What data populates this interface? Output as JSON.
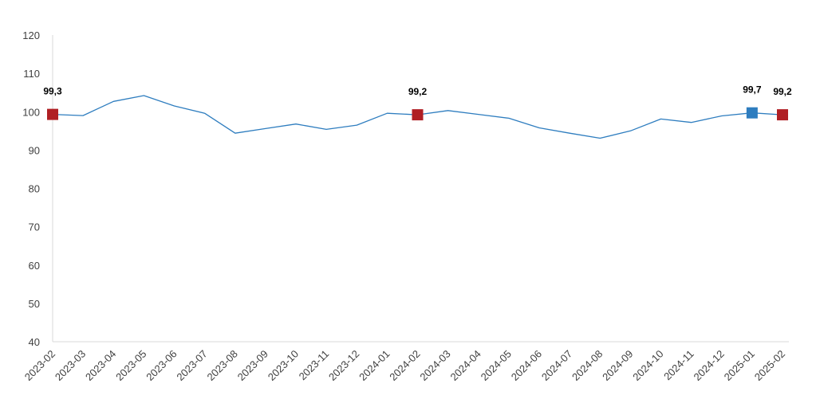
{
  "chart_data": {
    "type": "line",
    "title": "",
    "xlabel": "",
    "ylabel": "",
    "ylim": [
      40,
      120
    ],
    "yticks": [
      40,
      50,
      60,
      70,
      80,
      90,
      100,
      110,
      120
    ],
    "yticks_labels": [
      "40",
      "50",
      "60",
      "70",
      "80",
      "90",
      "100",
      "110",
      "120"
    ],
    "grid": false,
    "legend": "none",
    "categories": [
      "2023-02",
      "2023-03",
      "2023-04",
      "2023-05",
      "2023-06",
      "2023-07",
      "2023-08",
      "2023-09",
      "2023-10",
      "2023-11",
      "2023-12",
      "2024-01",
      "2024-02",
      "2024-03",
      "2024-04",
      "2024-05",
      "2024-06",
      "2024-07",
      "2024-08",
      "2024-09",
      "2024-10",
      "2024-11",
      "2024-12",
      "2025-01",
      "2025-02"
    ],
    "series": [
      {
        "values": [
          99.3,
          99.0,
          102.7,
          104.2,
          101.5,
          99.6,
          94.4,
          95.6,
          96.8,
          95.4,
          96.5,
          99.6,
          99.2,
          100.3,
          99.3,
          98.3,
          95.8,
          94.4,
          93.1,
          95.0,
          98.1,
          97.2,
          98.9,
          99.7,
          99.2
        ],
        "color": "#2e7dbf"
      }
    ],
    "highlights": [
      {
        "index": 0,
        "label": "99,3",
        "color": "#b01f24"
      },
      {
        "index": 12,
        "label": "99,2",
        "color": "#b01f24"
      },
      {
        "index": 23,
        "label": "99,7",
        "color": "#2e7dbf"
      },
      {
        "index": 24,
        "label": "99,2",
        "color": "#b01f24"
      }
    ],
    "axis_color": "#d9d9d9"
  }
}
